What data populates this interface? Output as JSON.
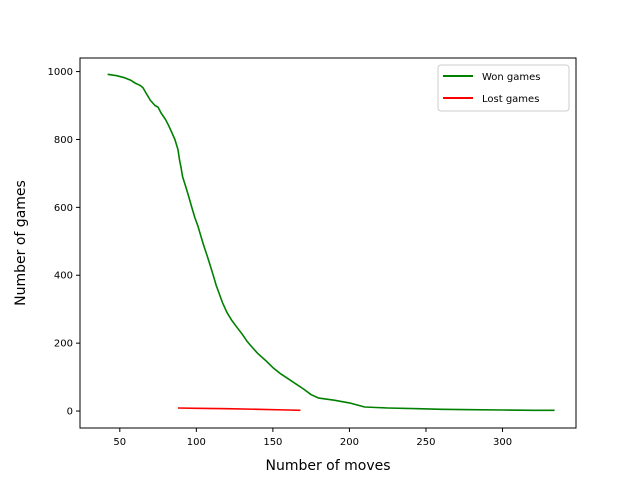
{
  "chart_data": {
    "type": "line",
    "title": "",
    "xlabel": "Number of moves",
    "ylabel": "Number of games",
    "xlim": [
      24,
      348
    ],
    "ylim": [
      -50,
      1040
    ],
    "xticks": [
      "50",
      "100",
      "150",
      "200",
      "250",
      "300"
    ],
    "yticks": [
      "0",
      "200",
      "400",
      "600",
      "800",
      "1000"
    ],
    "grid": false,
    "legend_position": "top-right",
    "series": [
      {
        "name": "Won games",
        "color": "#008000",
        "points": [
          [
            42,
            992
          ],
          [
            48,
            988
          ],
          [
            53,
            982
          ],
          [
            57,
            975
          ],
          [
            60,
            966
          ],
          [
            63,
            960
          ],
          [
            65,
            953
          ],
          [
            67,
            938
          ],
          [
            70,
            915
          ],
          [
            73,
            900
          ],
          [
            75,
            895
          ],
          [
            77,
            878
          ],
          [
            80,
            858
          ],
          [
            82,
            840
          ],
          [
            84,
            820
          ],
          [
            86,
            800
          ],
          [
            88,
            770
          ],
          [
            89,
            740
          ],
          [
            90,
            718
          ],
          [
            91,
            690
          ],
          [
            93,
            662
          ],
          [
            95,
            632
          ],
          [
            97,
            600
          ],
          [
            99,
            570
          ],
          [
            101,
            545
          ],
          [
            103,
            515
          ],
          [
            105,
            485
          ],
          [
            107,
            458
          ],
          [
            109,
            430
          ],
          [
            111,
            400
          ],
          [
            113,
            370
          ],
          [
            115,
            345
          ],
          [
            117,
            320
          ],
          [
            120,
            290
          ],
          [
            123,
            268
          ],
          [
            126,
            250
          ],
          [
            130,
            226
          ],
          [
            133,
            206
          ],
          [
            136,
            190
          ],
          [
            140,
            170
          ],
          [
            145,
            150
          ],
          [
            150,
            128
          ],
          [
            155,
            110
          ],
          [
            160,
            95
          ],
          [
            165,
            80
          ],
          [
            170,
            65
          ],
          [
            175,
            48
          ],
          [
            180,
            38
          ],
          [
            190,
            32
          ],
          [
            200,
            24
          ],
          [
            210,
            12
          ],
          [
            225,
            9
          ],
          [
            245,
            7
          ],
          [
            260,
            5
          ],
          [
            280,
            4
          ],
          [
            300,
            3
          ],
          [
            320,
            2
          ],
          [
            334,
            2
          ]
        ]
      },
      {
        "name": "Lost games",
        "color": "#ff0000",
        "points": [
          [
            88,
            9
          ],
          [
            100,
            8
          ],
          [
            120,
            7
          ],
          [
            140,
            5
          ],
          [
            160,
            3
          ],
          [
            168,
            2
          ]
        ]
      }
    ]
  }
}
